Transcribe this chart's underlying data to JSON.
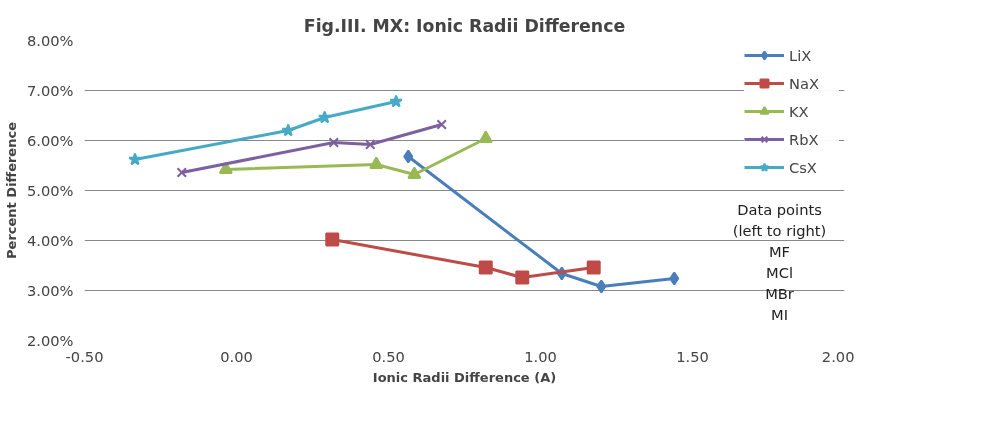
{
  "chart_data": {
    "type": "line",
    "title": "Fig.III. MX: Ionic Radii Difference",
    "xlabel": "Ionic Radii Difference (A)",
    "ylabel": "Percent Difference",
    "xlim": [
      -0.5,
      2.0
    ],
    "xticks": [
      {
        "value": -0.5,
        "label": "-0.50"
      },
      {
        "value": 0,
        "label": "0.00"
      },
      {
        "value": 0.5,
        "label": "0.50"
      },
      {
        "value": 1.0,
        "label": "1.00"
      },
      {
        "value": 1.5,
        "label": "1.50"
      },
      {
        "value": 2.0,
        "label": "2.00"
      }
    ],
    "ylim": [
      2,
      8
    ],
    "yticks": [
      {
        "value": 2,
        "label": "2.00%"
      },
      {
        "value": 3,
        "label": "3.00%"
      },
      {
        "value": 4,
        "label": "4.00%"
      },
      {
        "value": 5,
        "label": "5.00%"
      },
      {
        "value": 6,
        "label": "6.00%"
      },
      {
        "value": 7,
        "label": "7.00%"
      },
      {
        "value": 8,
        "label": "8.00%"
      }
    ],
    "grid": "y",
    "legend": "top right",
    "series": [
      {
        "name": "LiX",
        "color": "#4a7ebb",
        "marker": "diamond",
        "x": [
          0.565,
          1.07,
          1.2,
          1.44
        ],
        "values": [
          5.68,
          3.34,
          3.08,
          3.24
        ]
      },
      {
        "name": "NaX",
        "color": "#be4b48",
        "marker": "square",
        "x": [
          0.315,
          0.82,
          0.94,
          1.175
        ],
        "values": [
          4.02,
          3.46,
          3.26,
          3.46
        ]
      },
      {
        "name": "KX",
        "color": "#98b954",
        "marker": "triangle",
        "x": [
          -0.035,
          0.46,
          0.585,
          0.82
        ],
        "values": [
          5.42,
          5.52,
          5.32,
          6.04
        ]
      },
      {
        "name": "RbX",
        "color": "#7d60a0",
        "marker": "cross",
        "x": [
          -0.18,
          0.32,
          0.44,
          0.675
        ],
        "values": [
          5.36,
          5.96,
          5.92,
          6.32
        ]
      },
      {
        "name": "CsX",
        "color": "#46aac5",
        "marker": "star",
        "x": [
          -0.334,
          0.17,
          0.29,
          0.525
        ],
        "values": [
          5.62,
          6.2,
          6.46,
          6.78
        ]
      }
    ],
    "annotations": [
      "Data points\n(left to right)\nMF\nMCl\nMBr\nMI"
    ]
  }
}
